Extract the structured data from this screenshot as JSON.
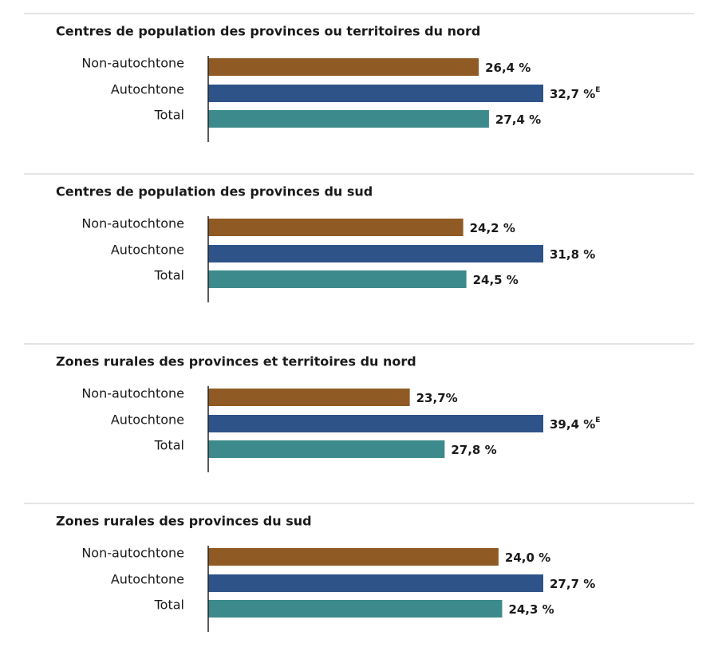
{
  "chart_data": [
    {
      "type": "bar",
      "title": "Centres de population des provinces ou territoires du nord",
      "categories": [
        "Non-autochtone",
        "Autochtone",
        "Total"
      ],
      "values": [
        26.4,
        32.7,
        27.4
      ],
      "value_labels": [
        "26,4 %",
        "32,7 %",
        "27,4 %"
      ],
      "notes": [
        null,
        "E",
        null
      ],
      "colors": [
        "#8f5a23",
        "#2e5389",
        "#3c8a8b"
      ]
    },
    {
      "type": "bar",
      "title": "Centres de population des provinces du sud",
      "categories": [
        "Non-autochtone",
        "Autochtone",
        "Total"
      ],
      "values": [
        24.2,
        31.8,
        24.5
      ],
      "value_labels": [
        "24,2 %",
        "31,8 %",
        "24,5 %"
      ],
      "notes": [
        null,
        null,
        null
      ],
      "colors": [
        "#8f5a23",
        "#2e5389",
        "#3c8a8b"
      ]
    },
    {
      "type": "bar",
      "title": "Zones rurales des provinces et territoires du nord",
      "categories": [
        "Non-autochtone",
        "Autochtone",
        "Total"
      ],
      "values": [
        23.7,
        39.4,
        27.8
      ],
      "value_labels": [
        "23,7%",
        "39,4 %",
        "27,8 %"
      ],
      "notes": [
        null,
        "E",
        null
      ],
      "colors": [
        "#8f5a23",
        "#2e5389",
        "#3c8a8b"
      ]
    },
    {
      "type": "bar",
      "title": "Zones rurales des provinces du sud",
      "categories": [
        "Non-autochtone",
        "Autochtone",
        "Total"
      ],
      "values": [
        24.0,
        27.7,
        24.3
      ],
      "value_labels": [
        "24,0 %",
        "27,7 %",
        "24,3 %"
      ],
      "notes": [
        null,
        null,
        null
      ],
      "colors": [
        "#8f5a23",
        "#2e5389",
        "#3c8a8b"
      ]
    }
  ]
}
